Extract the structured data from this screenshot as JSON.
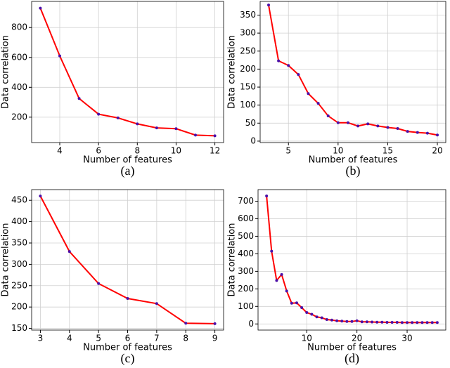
{
  "chart_data": [
    {
      "type": "line",
      "caption": "(a)",
      "x_label": "Number of features",
      "y_label": "Data correlation",
      "x": [
        3,
        4,
        5,
        6,
        7,
        8,
        9,
        10,
        11,
        12
      ],
      "values": [
        930,
        610,
        325,
        220,
        195,
        155,
        128,
        123,
        80,
        75
      ],
      "color": "#ff0000",
      "marker_color": "#4b0fa8",
      "grid": true,
      "xlim": [
        2.55,
        12.45
      ],
      "ylim": [
        30,
        975
      ],
      "xticks": [
        4,
        6,
        8,
        10,
        12
      ],
      "yticks": [
        200,
        400,
        600,
        800
      ]
    },
    {
      "type": "line",
      "caption": "(b)",
      "x_label": "Number of features",
      "y_label": "Data correlation",
      "x": [
        3,
        4,
        5,
        6,
        7,
        8,
        9,
        10,
        11,
        12,
        13,
        14,
        15,
        16,
        17,
        18,
        19,
        20
      ],
      "values": [
        378,
        223,
        210,
        185,
        132,
        105,
        70,
        51,
        51,
        42,
        48,
        42,
        38,
        35,
        27,
        24,
        22,
        17
      ],
      "color": "#ff0000",
      "marker_color": "#4b0fa8",
      "grid": true,
      "xlim": [
        2.15,
        20.85
      ],
      "ylim": [
        -4,
        388
      ],
      "xticks": [
        5,
        10,
        15,
        20
      ],
      "yticks": [
        0,
        50,
        100,
        150,
        200,
        250,
        300,
        350
      ]
    },
    {
      "type": "line",
      "caption": "(c)",
      "x_label": "Number of features",
      "y_label": "Data correlation",
      "x": [
        3,
        4,
        5,
        6,
        7,
        8,
        9
      ],
      "values": [
        460,
        330,
        255,
        220,
        208,
        162,
        161
      ],
      "color": "#ff0000",
      "marker_color": "#4b0fa8",
      "grid": true,
      "xlim": [
        2.7,
        9.3
      ],
      "ylim": [
        146,
        475
      ],
      "xticks": [
        3,
        4,
        5,
        6,
        7,
        8,
        9
      ],
      "yticks": [
        150,
        200,
        250,
        300,
        350,
        400,
        450
      ]
    },
    {
      "type": "line",
      "caption": "(d)",
      "x_label": "Number of features",
      "y_label": "Data correlation",
      "x": [
        2,
        3,
        4,
        5,
        6,
        7,
        8,
        9,
        10,
        11,
        12,
        13,
        14,
        15,
        16,
        17,
        18,
        19,
        20,
        21,
        22,
        23,
        24,
        25,
        26,
        27,
        28,
        29,
        30,
        31,
        32,
        33,
        34,
        35,
        36
      ],
      "values": [
        730,
        415,
        248,
        282,
        188,
        118,
        120,
        93,
        65,
        55,
        40,
        35,
        25,
        22,
        18,
        16,
        14,
        14,
        18,
        12,
        12,
        11,
        10,
        10,
        9,
        9,
        9,
        8,
        8,
        8,
        8,
        8,
        8,
        8,
        8
      ],
      "color": "#ff0000",
      "marker_color": "#4b0fa8",
      "grid": true,
      "xlim": [
        0.3,
        37.7
      ],
      "ylim": [
        -35,
        766
      ],
      "xticks": [
        10,
        20,
        30
      ],
      "yticks": [
        0,
        100,
        200,
        300,
        400,
        500,
        600,
        700
      ]
    }
  ]
}
